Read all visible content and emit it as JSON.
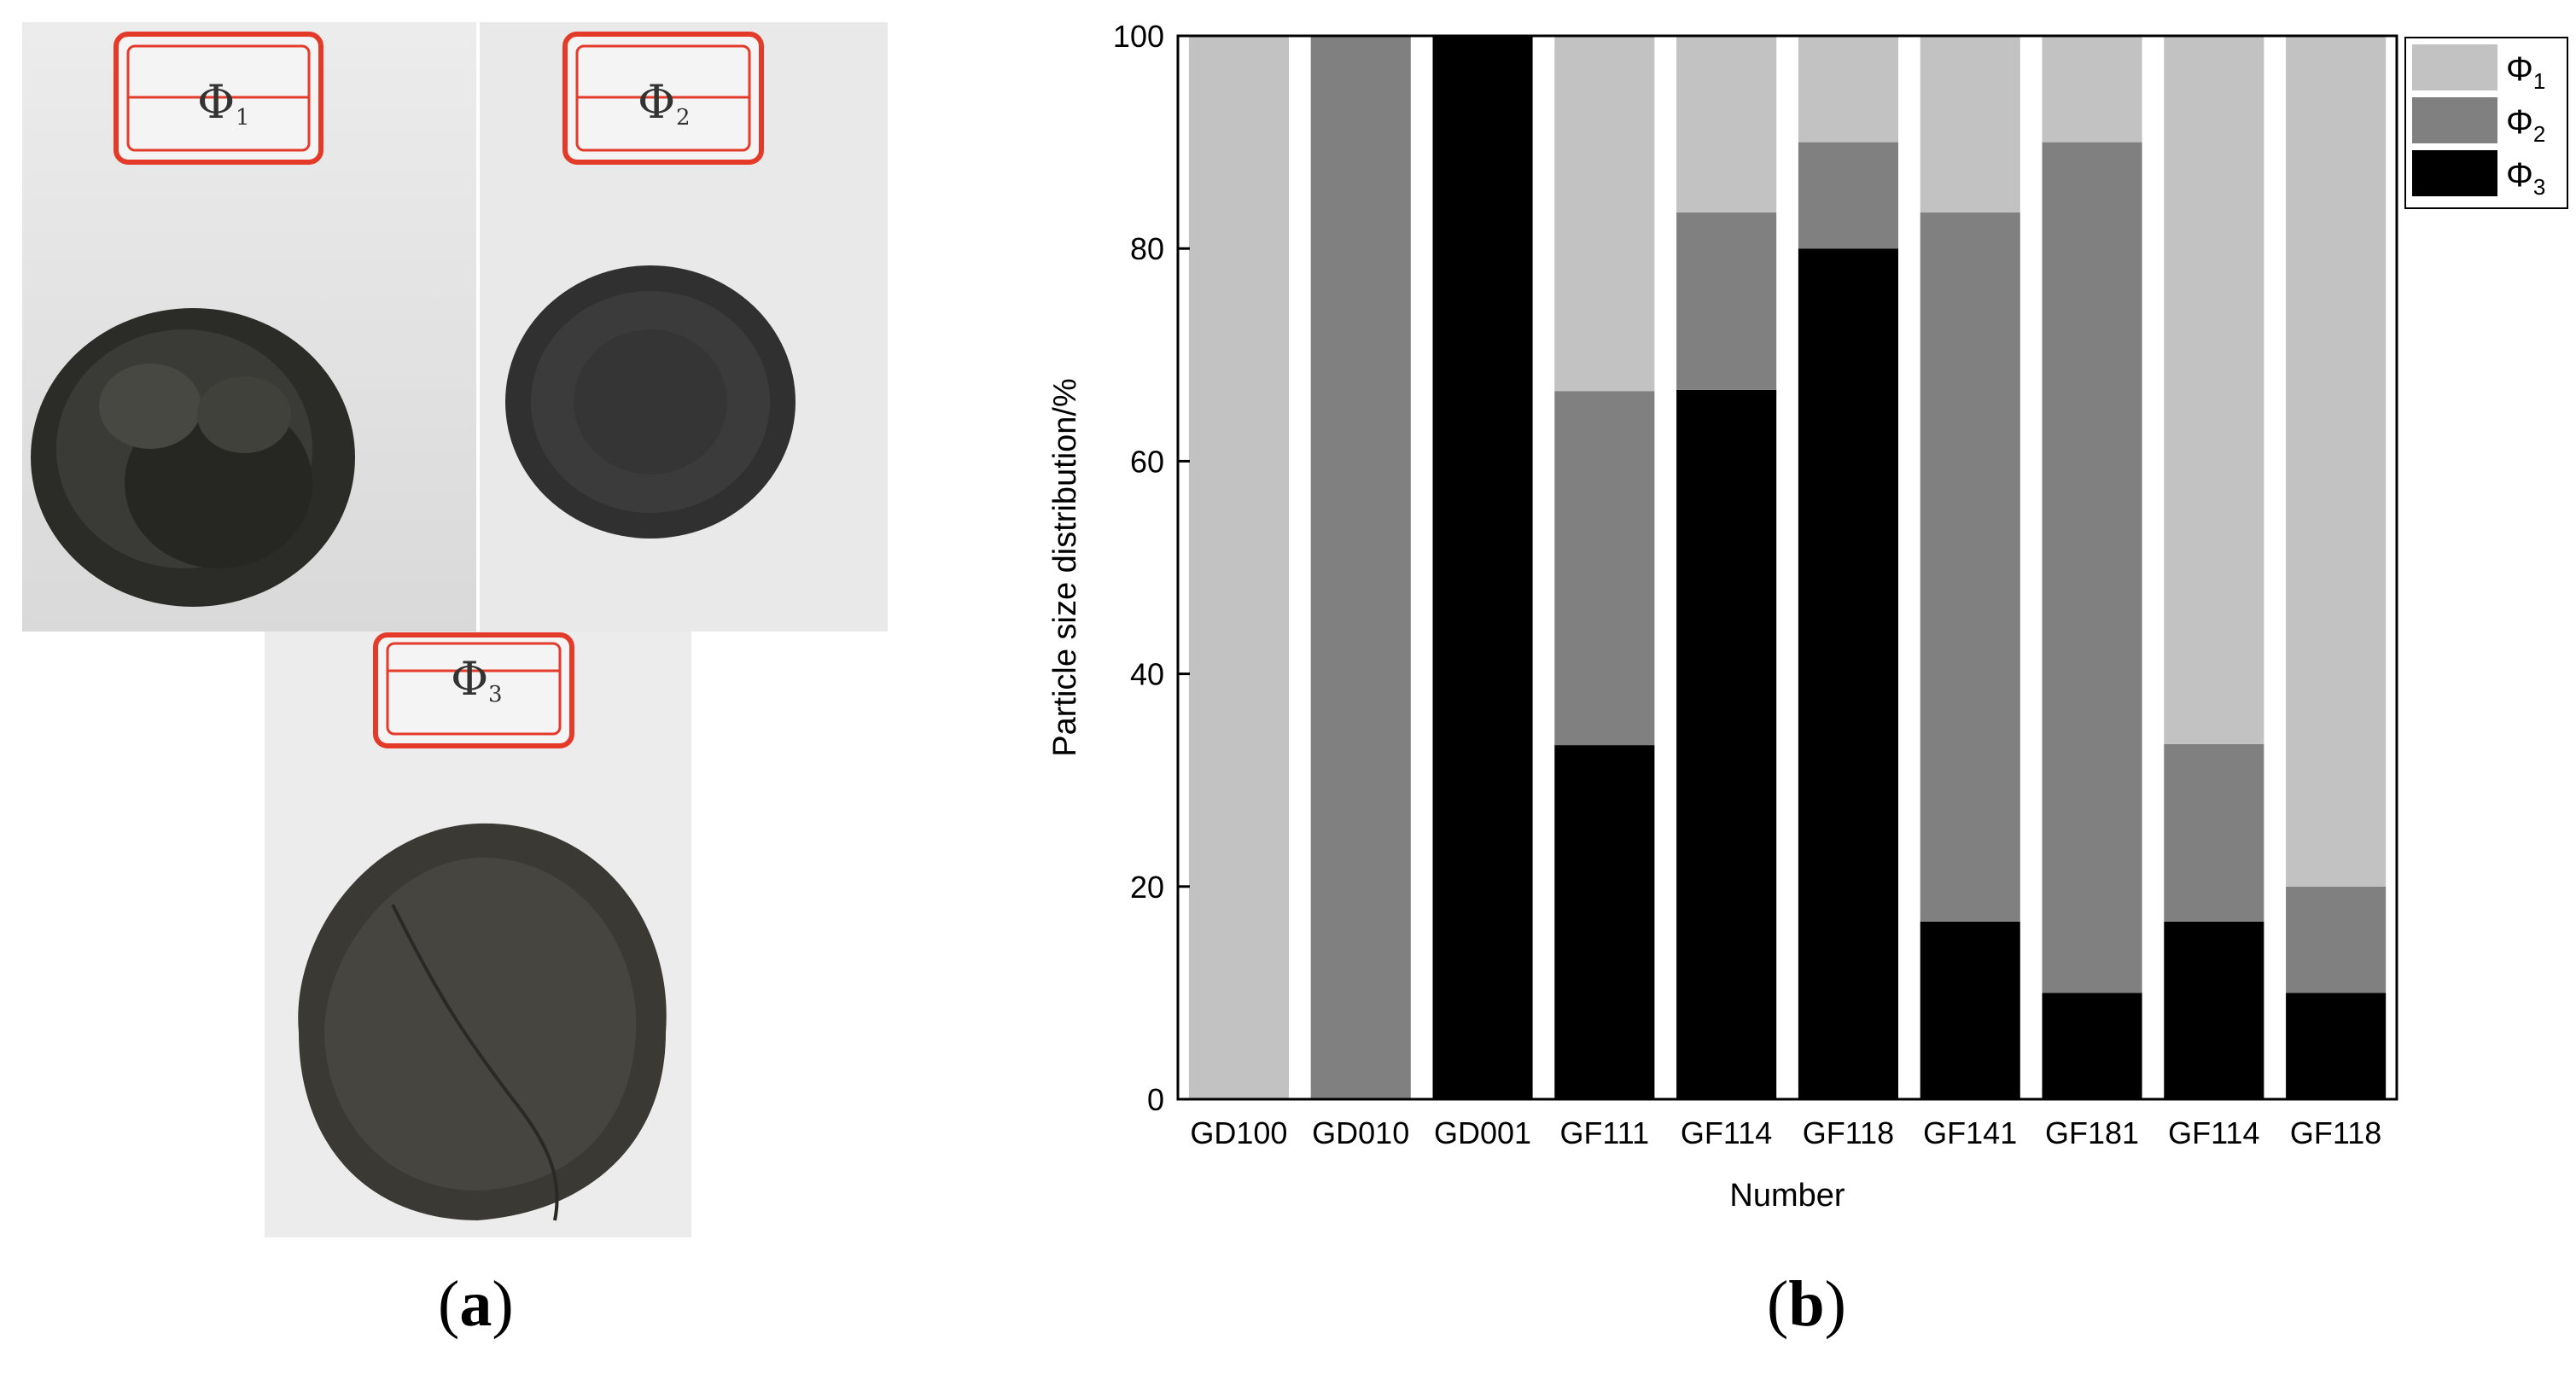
{
  "figure": {
    "panel_a_label": "a",
    "panel_b_label": "b"
  },
  "photos": [
    {
      "tag": "Φ1",
      "content": "coarse granules"
    },
    {
      "tag": "Φ2",
      "content": "fine granules"
    },
    {
      "tag": "Φ3",
      "content": "powder"
    }
  ],
  "colors": {
    "phi1": "#c2c2c2",
    "phi2": "#808080",
    "phi3": "#000000"
  },
  "chart_data": {
    "type": "bar",
    "stacked": true,
    "xlabel": "Number",
    "ylabel": "Particle size distribution/%",
    "ylim": [
      0,
      100
    ],
    "yticks": [
      0,
      20,
      40,
      60,
      80,
      100
    ],
    "categories": [
      "GD100",
      "GD010",
      "GD001",
      "GF111",
      "GF114",
      "GF118",
      "GF141",
      "GF181",
      "GF114",
      "GF118"
    ],
    "series": [
      {
        "name": "Φ3",
        "color": "#000000",
        "values": [
          0,
          0,
          100,
          33.3,
          66.7,
          80,
          16.7,
          10,
          16.7,
          10
        ]
      },
      {
        "name": "Φ2",
        "color": "#808080",
        "values": [
          0,
          100,
          0,
          33.3,
          16.7,
          10,
          66.7,
          80,
          16.7,
          10
        ]
      },
      {
        "name": "Φ1",
        "color": "#c2c2c2",
        "values": [
          100,
          0,
          0,
          33.4,
          16.6,
          10,
          16.6,
          10,
          66.6,
          80
        ]
      }
    ],
    "legend": {
      "position": "top-right",
      "items": [
        {
          "symbol": "Φ",
          "sub": "1",
          "color": "#c2c2c2"
        },
        {
          "symbol": "Φ",
          "sub": "2",
          "color": "#808080"
        },
        {
          "symbol": "Φ",
          "sub": "3",
          "color": "#000000"
        }
      ]
    },
    "grid": false
  }
}
